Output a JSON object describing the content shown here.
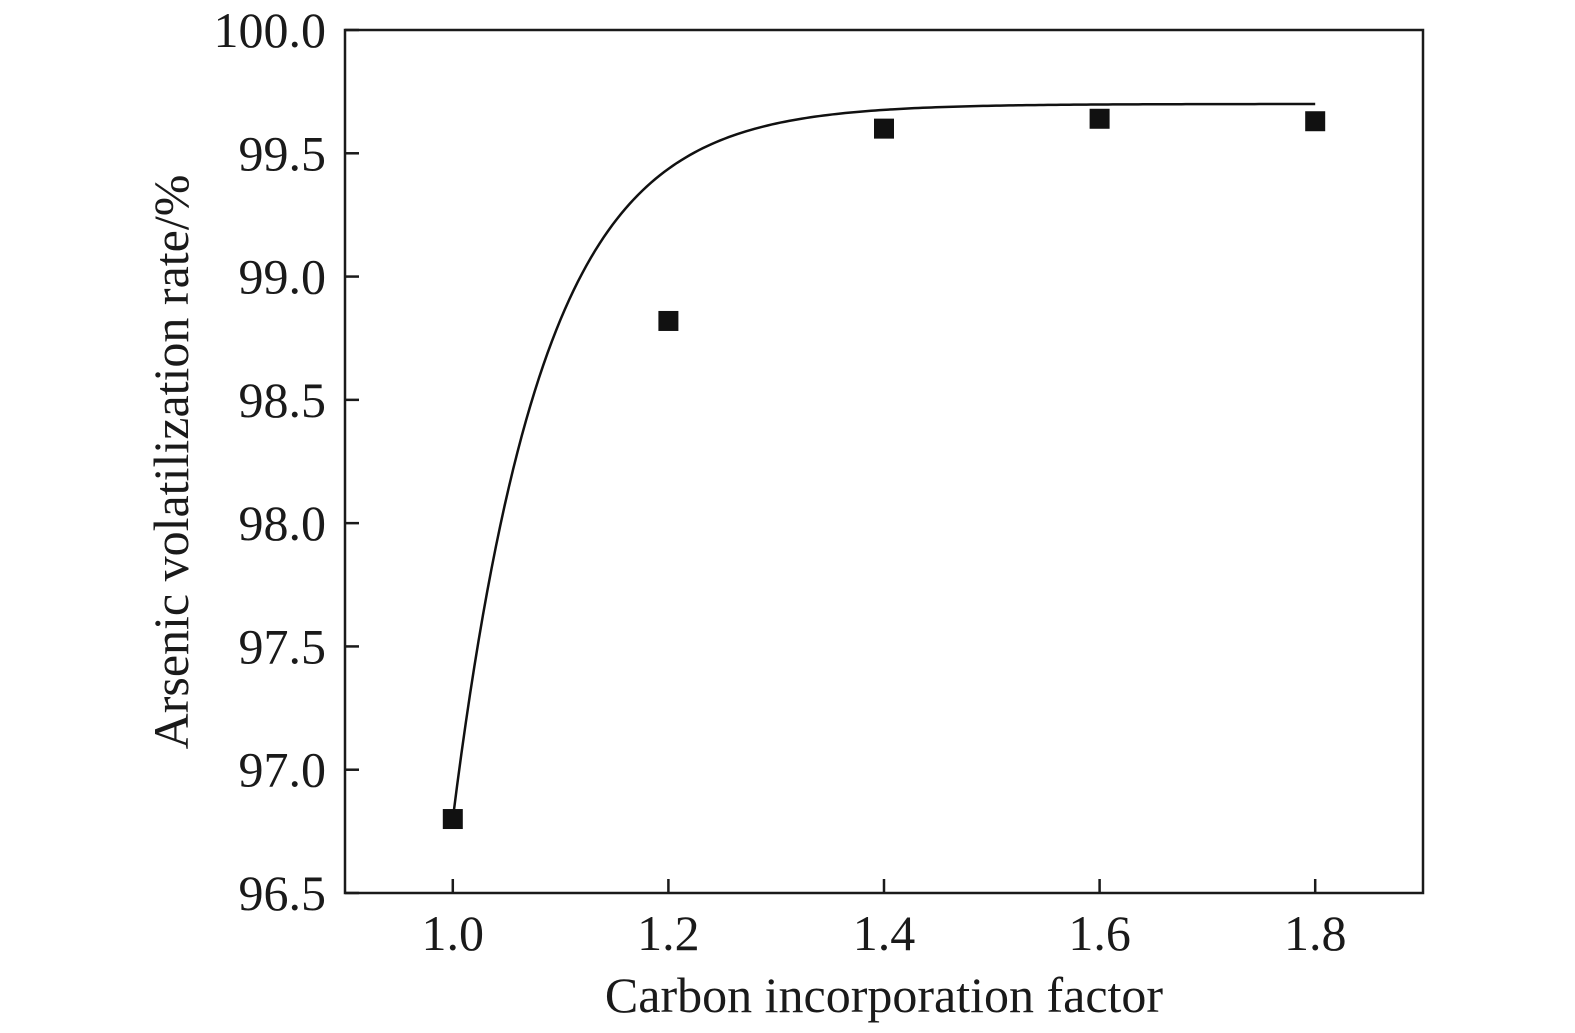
{
  "chart_data": {
    "type": "scatter",
    "title": "",
    "xlabel": "Carbon incorporation factor",
    "ylabel": "Arsenic volatilization rate/%",
    "xlim": [
      0.9,
      1.9
    ],
    "ylim": [
      96.5,
      100.0
    ],
    "x_ticks": [
      "1.0",
      "1.2",
      "1.4",
      "1.6",
      "1.8"
    ],
    "y_ticks": [
      "96.5",
      "97.0",
      "97.5",
      "98.0",
      "98.5",
      "99.0",
      "99.5",
      "100.0"
    ],
    "grid": false,
    "series": [
      {
        "marker": "square",
        "color": "#111111",
        "points": [
          {
            "x": 1.0,
            "y": 96.8
          },
          {
            "x": 1.2,
            "y": 98.82
          },
          {
            "x": 1.4,
            "y": 99.6
          },
          {
            "x": 1.6,
            "y": 99.64
          },
          {
            "x": 1.8,
            "y": 99.63
          }
        ]
      }
    ],
    "fit_curve": {
      "type": "exponential",
      "color": "#111111",
      "x_range": [
        1.0,
        1.8
      ],
      "asymptote": 99.7,
      "amplitude": 2.9,
      "rate": 12.0
    }
  }
}
